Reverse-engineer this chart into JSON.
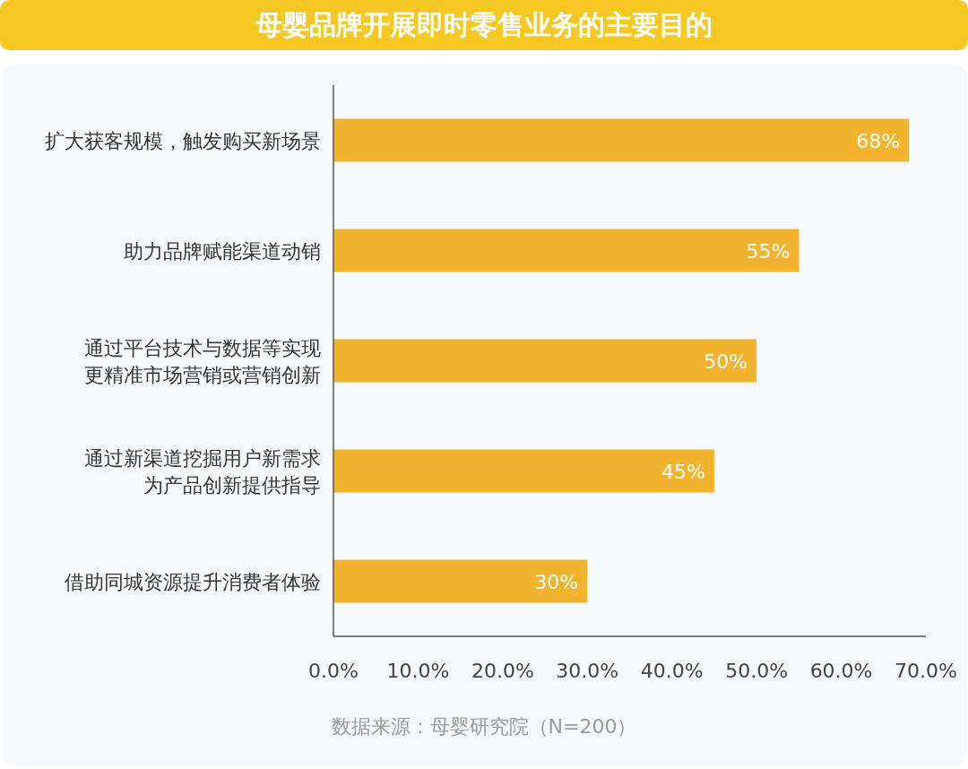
{
  "chart_data": {
    "type": "bar",
    "orientation": "horizontal",
    "title": "母婴品牌开展即时零售业务的主要目的",
    "categories": [
      "扩大获客规模，触发购买新场景",
      "助力品牌赋能渠道动销",
      "通过平台技术与数据等实现更精准市场营销或营销创新",
      "通过新渠道挖掘用户新需求为产品创新提供指导",
      "借助同城资源提升消费者体验"
    ],
    "values": [
      68,
      55,
      50,
      45,
      30
    ],
    "value_labels": [
      "68%",
      "55%",
      "50%",
      "45%",
      "30%"
    ],
    "color": "#f2b42e",
    "xlim": [
      0,
      70
    ],
    "xticks": [
      {
        "value": 0,
        "label": "0.0%"
      },
      {
        "value": 10,
        "label": "10.0%"
      },
      {
        "value": 20,
        "label": "20.0%"
      },
      {
        "value": 30,
        "label": "30.0%"
      },
      {
        "value": 40,
        "label": "40.0%"
      },
      {
        "value": 50,
        "label": "50.0%"
      },
      {
        "value": 60,
        "label": "60.0%"
      },
      {
        "value": 70,
        "label": "70.0%"
      }
    ],
    "grid": false,
    "annotations": [
      "数据来源：母婴研究院（N=200）"
    ]
  }
}
